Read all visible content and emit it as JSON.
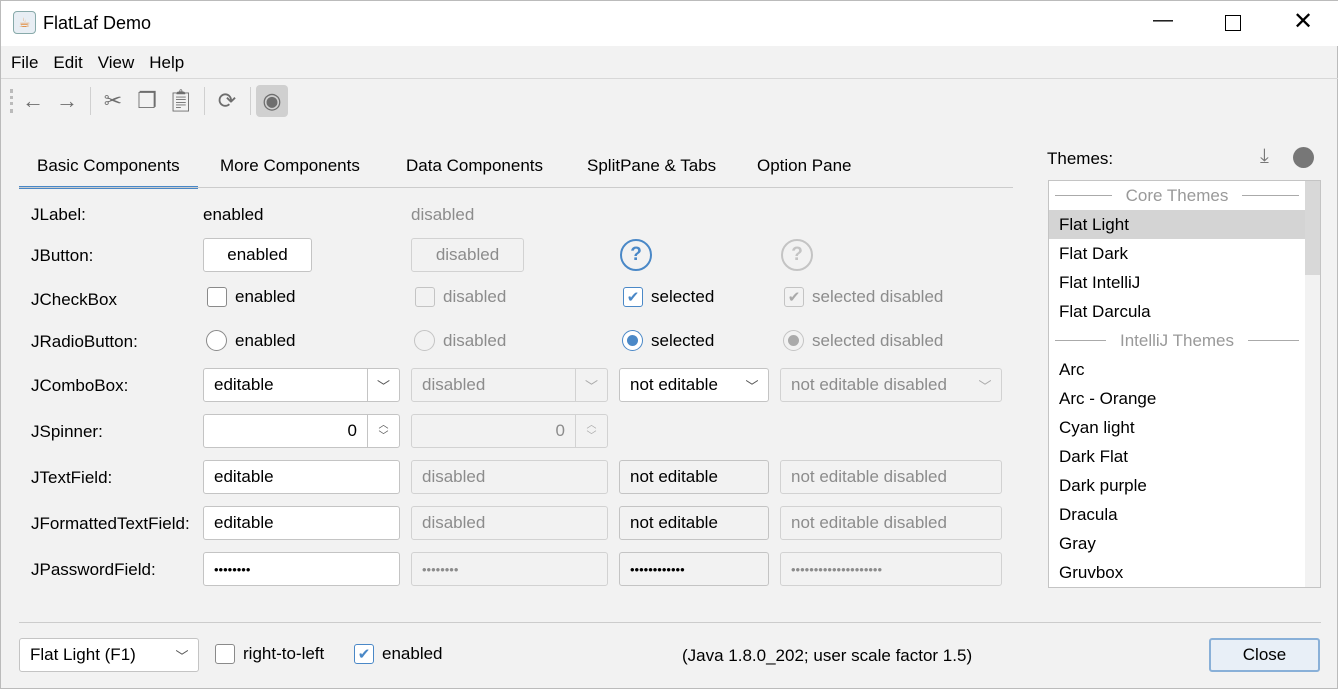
{
  "window": {
    "title": "FlatLaf Demo",
    "app_icon": "java-coffee-icon",
    "controls": [
      "minimize-icon",
      "maximize-icon",
      "close-icon"
    ]
  },
  "menu": [
    "File",
    "Edit",
    "View",
    "Help"
  ],
  "toolbar": [
    "back-arrow-icon",
    "forward-arrow-icon",
    "cut-icon",
    "copy-icon",
    "paste-icon",
    "refresh-icon",
    "eye-icon"
  ],
  "tabs": [
    "Basic Components",
    "More Components",
    "Data Components",
    "SplitPane & Tabs",
    "Option Pane"
  ],
  "labels": [
    "JLabel:",
    "JButton:",
    "JCheckBox",
    "JRadioButton:",
    "JComboBox:",
    "JSpinner:",
    "JTextField:",
    "JFormattedTextField:",
    "JPasswordField:"
  ],
  "jlabel": {
    "enabled": "enabled",
    "disabled": "disabled"
  },
  "jbutton": {
    "enabled": "enabled",
    "disabled": "disabled",
    "help": "?"
  },
  "checkbox": {
    "enabled": "enabled",
    "disabled": "disabled",
    "selected": "selected",
    "selected_disabled": "selected disabled"
  },
  "radio": {
    "enabled": "enabled",
    "disabled": "disabled",
    "selected": "selected",
    "selected_disabled": "selected disabled"
  },
  "combo": {
    "editable": "editable",
    "disabled": "disabled",
    "not_editable": "not editable",
    "not_editable_disabled": "not editable disabled"
  },
  "spinner": {
    "enabled": "0",
    "disabled": "0"
  },
  "textfield": {
    "editable": "editable",
    "disabled": "disabled",
    "not_editable": "not editable",
    "not_editable_disabled": "not editable disabled"
  },
  "formatted": {
    "editable": "editable",
    "disabled": "disabled",
    "not_editable": "not editable",
    "not_editable_disabled": "not editable disabled"
  },
  "password": {
    "editable": "••••••••",
    "disabled": "••••••••",
    "not_editable": "••••••••••••",
    "not_editable_disabled": "••••••••••••••••••••"
  },
  "themes": {
    "label": "Themes:",
    "groups": [
      "Core Themes",
      "IntelliJ Themes"
    ],
    "core": [
      "Flat Light",
      "Flat Dark",
      "Flat IntelliJ",
      "Flat Darcula"
    ],
    "intellij": [
      "Arc",
      "Arc - Orange",
      "Cyan light",
      "Dark Flat",
      "Dark purple",
      "Dracula",
      "Gray",
      "Gruvbox"
    ],
    "selected": "Flat Light"
  },
  "bottom": {
    "theme_combo": "Flat Light (F1)",
    "rtl": "right-to-left",
    "enabled": "enabled",
    "info": "(Java 1.8.0_202;  user scale factor 1.5)",
    "close": "Close"
  },
  "colors": {
    "accent": "#4a88c7",
    "selection": "#d4d4d4"
  }
}
